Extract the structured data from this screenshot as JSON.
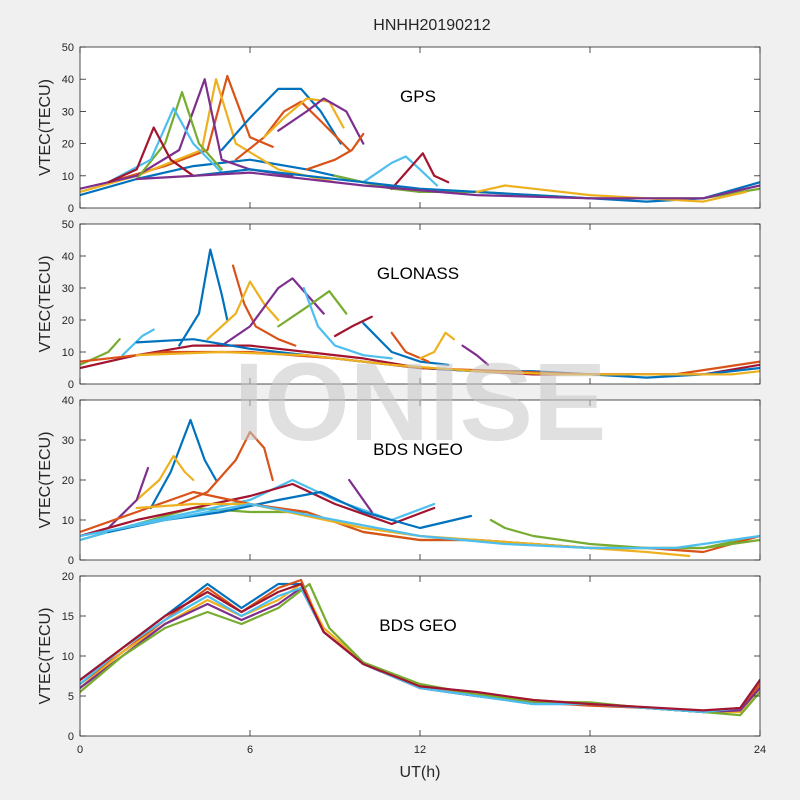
{
  "figure": {
    "title": "HNHH20190212",
    "xlabel": "UT(h)",
    "watermark": "IONISE",
    "xlim": [
      0,
      24
    ],
    "xticks": [
      0,
      6,
      12,
      18,
      24
    ],
    "colors": [
      "#0072BD",
      "#D95319",
      "#EDB120",
      "#7E2F8E",
      "#77AC30",
      "#4DBEEE",
      "#A2142F"
    ]
  },
  "chart_data": [
    {
      "type": "line",
      "label": "GPS",
      "ylabel": "VTEC(TECU)",
      "ylim": [
        0,
        50
      ],
      "yticks": [
        0,
        10,
        20,
        30,
        40,
        50
      ],
      "xlim": [
        0,
        24
      ],
      "series": [
        {
          "x": [
            0,
            2,
            4,
            6,
            8,
            10,
            12
          ],
          "y": [
            4,
            9,
            13,
            15,
            12,
            8,
            5
          ]
        },
        {
          "x": [
            1,
            3,
            4.5,
            5.2,
            6,
            6.8
          ],
          "y": [
            8,
            13,
            18,
            41,
            22,
            19
          ]
        },
        {
          "x": [
            0,
            2,
            4.3,
            4.8,
            5.5,
            7,
            9
          ],
          "y": [
            5,
            10,
            18,
            40,
            20,
            12,
            8
          ]
        },
        {
          "x": [
            0,
            2,
            3.5,
            4.4,
            5,
            6,
            7.5
          ],
          "y": [
            6,
            10,
            18,
            40,
            15,
            12,
            10
          ]
        },
        {
          "x": [
            2,
            3,
            3.6,
            4.2,
            5
          ],
          "y": [
            9,
            20,
            36,
            20,
            12
          ]
        },
        {
          "x": [
            1,
            2.5,
            3.3,
            4,
            5
          ],
          "y": [
            8,
            15,
            31,
            20,
            11
          ]
        },
        {
          "x": [
            1,
            2,
            2.6,
            3.2,
            4
          ],
          "y": [
            8,
            12,
            25,
            15,
            10
          ]
        },
        {
          "x": [
            5,
            6,
            7,
            7.8,
            8.5,
            9.2
          ],
          "y": [
            18,
            28,
            37,
            37,
            30,
            20
          ]
        },
        {
          "x": [
            5.5,
            6.5,
            7.2,
            7.8,
            8.5,
            9.5
          ],
          "y": [
            15,
            22,
            30,
            33,
            27,
            18
          ]
        },
        {
          "x": [
            6.5,
            7.2,
            8,
            8.8,
            9.3
          ],
          "y": [
            22,
            28,
            34,
            33,
            25
          ]
        },
        {
          "x": [
            7,
            8,
            8.6,
            9.4,
            10
          ],
          "y": [
            24,
            30,
            34,
            30,
            20
          ]
        },
        {
          "x": [
            9,
            10,
            11,
            12,
            14,
            16,
            18,
            20,
            22,
            24
          ],
          "y": [
            10,
            8,
            6,
            5,
            5,
            4,
            3,
            3,
            3,
            6
          ]
        },
        {
          "x": [
            10,
            11,
            11.5,
            12,
            12.6
          ],
          "y": [
            8,
            14,
            16,
            12,
            7
          ]
        },
        {
          "x": [
            11,
            11.6,
            12.1,
            12.5,
            13
          ],
          "y": [
            6,
            12,
            17,
            10,
            8
          ]
        },
        {
          "x": [
            4,
            6,
            8,
            10,
            12,
            14,
            16,
            18,
            20,
            22,
            24
          ],
          "y": [
            10,
            12,
            10,
            8,
            6,
            5,
            4,
            3,
            2,
            3,
            8
          ]
        },
        {
          "x": [
            8,
            9,
            9.6,
            10
          ],
          "y": [
            12,
            15,
            18,
            23
          ]
        },
        {
          "x": [
            14,
            15,
            16,
            18,
            20,
            22,
            23.5
          ],
          "y": [
            5,
            7,
            6,
            4,
            3,
            2,
            5
          ]
        },
        {
          "x": [
            2,
            6,
            10,
            14,
            18,
            22,
            24
          ],
          "y": [
            9,
            11,
            7,
            4,
            3,
            3,
            7
          ]
        }
      ]
    },
    {
      "type": "line",
      "label": "GLONASS",
      "ylabel": "VTEC(TECU)",
      "ylim": [
        0,
        50
      ],
      "yticks": [
        0,
        10,
        20,
        30,
        40,
        50
      ],
      "xlim": [
        0,
        24
      ],
      "series": [
        {
          "x": [
            3.5,
            4.2,
            4.6,
            5,
            5.2
          ],
          "y": [
            12,
            22,
            42,
            28,
            20
          ]
        },
        {
          "x": [
            5.4,
            5.8,
            6.2,
            7,
            7.6
          ],
          "y": [
            37,
            25,
            18,
            14,
            12
          ]
        },
        {
          "x": [
            4.5,
            5.5,
            6,
            6.5,
            7
          ],
          "y": [
            14,
            22,
            32,
            25,
            20
          ]
        },
        {
          "x": [
            5,
            6,
            7,
            7.5,
            8,
            8.6
          ],
          "y": [
            12,
            18,
            30,
            33,
            28,
            22
          ]
        },
        {
          "x": [
            7,
            8,
            8.8,
            9.4
          ],
          "y": [
            18,
            24,
            29,
            22
          ]
        },
        {
          "x": [
            7.9,
            8.4,
            9,
            10,
            11
          ],
          "y": [
            30,
            18,
            12,
            9,
            8
          ]
        },
        {
          "x": [
            9,
            9.6,
            10.3
          ],
          "y": [
            15,
            18,
            21
          ]
        },
        {
          "x": [
            10,
            11,
            12,
            13
          ],
          "y": [
            19,
            10,
            7,
            6
          ]
        },
        {
          "x": [
            11,
            11.5,
            12.3
          ],
          "y": [
            16,
            10,
            7
          ]
        },
        {
          "x": [
            12,
            12.5,
            12.9,
            13.2
          ],
          "y": [
            8,
            10,
            16,
            14
          ]
        },
        {
          "x": [
            13.5,
            14,
            14.4
          ],
          "y": [
            12,
            9,
            6
          ]
        },
        {
          "x": [
            0,
            1,
            1.4
          ],
          "y": [
            6,
            10,
            14
          ]
        },
        {
          "x": [
            1.5,
            2.2,
            2.6
          ],
          "y": [
            9,
            15,
            17
          ]
        },
        {
          "x": [
            0,
            2,
            4,
            6,
            8,
            10,
            12,
            14,
            16,
            18,
            20,
            22,
            24
          ],
          "y": [
            5,
            9,
            12,
            12,
            10,
            8,
            5,
            4,
            3,
            3,
            3,
            3,
            6
          ]
        },
        {
          "x": [
            2,
            4,
            6,
            8,
            10,
            12,
            14,
            16,
            18,
            20,
            22,
            24
          ],
          "y": [
            13,
            14,
            11,
            9,
            7,
            5,
            4,
            4,
            3,
            2,
            3,
            5
          ]
        },
        {
          "x": [
            0,
            3,
            6,
            9,
            12,
            15,
            18,
            21,
            24
          ],
          "y": [
            7,
            10,
            10,
            8,
            5,
            4,
            3,
            3,
            7
          ]
        },
        {
          "x": [
            2,
            5,
            8,
            11,
            14,
            17,
            20,
            23,
            24
          ],
          "y": [
            9,
            10,
            9,
            6,
            4,
            3,
            3,
            3,
            4
          ]
        }
      ]
    },
    {
      "type": "line",
      "label": "BDS NGEO",
      "ylabel": "VTEC(TECU)",
      "ylim": [
        0,
        40
      ],
      "yticks": [
        0,
        10,
        20,
        30,
        40
      ],
      "xlim": [
        0,
        24
      ],
      "series": [
        {
          "x": [
            2.5,
            3.2,
            3.9,
            4.4,
            4.8
          ],
          "y": [
            13,
            22,
            35,
            25,
            20
          ]
        },
        {
          "x": [
            3.5,
            4.5,
            5.5,
            6,
            6.5,
            6.8
          ],
          "y": [
            14,
            17,
            25,
            32,
            28,
            20
          ]
        },
        {
          "x": [
            2,
            2.8,
            3.3,
            3.7,
            4
          ],
          "y": [
            15,
            20,
            26,
            22,
            20
          ]
        },
        {
          "x": [
            0,
            1,
            2,
            2.4
          ],
          "y": [
            6,
            8,
            15,
            23
          ]
        },
        {
          "x": [
            0,
            2,
            4,
            6,
            8,
            10,
            12,
            14,
            16,
            18,
            20,
            22,
            24
          ],
          "y": [
            5,
            9,
            13,
            12,
            12,
            7,
            5,
            5,
            4,
            3,
            3,
            3,
            6
          ]
        },
        {
          "x": [
            0,
            2,
            4,
            6,
            7.5,
            9,
            11,
            12.5
          ],
          "y": [
            5,
            9,
            12,
            15,
            20,
            15,
            10,
            14
          ]
        },
        {
          "x": [
            0,
            2,
            4,
            6,
            7.5,
            9,
            11,
            12.5
          ],
          "y": [
            6,
            10,
            13,
            16,
            19,
            14,
            9,
            13
          ]
        },
        {
          "x": [
            1,
            3,
            5,
            7,
            8.5,
            10,
            12,
            13.8
          ],
          "y": [
            7,
            10,
            12,
            15,
            17,
            12,
            8,
            11
          ]
        },
        {
          "x": [
            0,
            2,
            4,
            6,
            8,
            10,
            12,
            14,
            16,
            18,
            20,
            22,
            24
          ],
          "y": [
            7,
            12,
            17,
            14,
            12,
            7,
            5,
            5,
            4,
            3,
            3,
            2,
            6
          ]
        },
        {
          "x": [
            2,
            4,
            6,
            8,
            10,
            12,
            14,
            16,
            18,
            20,
            21.5
          ],
          "y": [
            13,
            14,
            14,
            11,
            8,
            6,
            5,
            4,
            3,
            2,
            1
          ]
        },
        {
          "x": [
            9.5,
            9.9,
            10.3
          ],
          "y": [
            20,
            16,
            12
          ]
        },
        {
          "x": [
            14.5,
            15,
            16,
            18,
            20,
            22,
            24
          ],
          "y": [
            10,
            8,
            6,
            4,
            3,
            3,
            5
          ]
        },
        {
          "x": [
            0,
            3,
            6,
            9,
            12,
            15,
            18,
            21,
            24
          ],
          "y": [
            6,
            10,
            14,
            10,
            6,
            4,
            3,
            3,
            6
          ]
        }
      ]
    },
    {
      "type": "line",
      "label": "BDS GEO",
      "ylabel": "VTEC(TECU)",
      "ylim": [
        0,
        20
      ],
      "yticks": [
        0,
        5,
        10,
        15,
        20
      ],
      "xlim": [
        0,
        24
      ],
      "series": [
        {
          "x": [
            0,
            1.5,
            3,
            4.5,
            5.7,
            7,
            7.8,
            8.6,
            10,
            12,
            14,
            16,
            18,
            20,
            22,
            23.3,
            24
          ],
          "y": [
            7,
            11,
            15,
            19,
            16,
            19,
            19,
            13,
            9,
            6,
            5,
            4,
            4,
            3.5,
            3,
            3.5,
            7
          ]
        },
        {
          "x": [
            0,
            1.5,
            3,
            4.5,
            5.7,
            7,
            7.8,
            8.6,
            10,
            12,
            14,
            16,
            18,
            20,
            22,
            23.3,
            24
          ],
          "y": [
            6.5,
            10.5,
            14.5,
            18.5,
            15.5,
            18.5,
            19.5,
            13,
            9,
            6,
            5.2,
            4.2,
            3.8,
            3.5,
            3,
            3.2,
            6.5
          ]
        },
        {
          "x": [
            0,
            1.5,
            3,
            4.5,
            5.7,
            7,
            7.8,
            8.6,
            10,
            12,
            14,
            16,
            18,
            20,
            22,
            23.3,
            24
          ],
          "y": [
            6,
            10.5,
            14,
            17,
            15,
            17,
            19,
            13.5,
            9.2,
            6.2,
            5.3,
            4.5,
            4,
            3.6,
            3,
            3,
            6
          ]
        },
        {
          "x": [
            0,
            1.5,
            3,
            4.5,
            5.7,
            7,
            7.8,
            8.6,
            10,
            12,
            14,
            16,
            18,
            20,
            22,
            23.3,
            24
          ],
          "y": [
            6,
            10,
            14,
            16.5,
            14.5,
            16.5,
            18.5,
            13,
            9,
            6,
            5,
            4.3,
            4,
            3.5,
            3,
            3.2,
            6
          ]
        },
        {
          "x": [
            0,
            1.5,
            3,
            4.5,
            5.7,
            7,
            8.1,
            8.8,
            10,
            12,
            14,
            16,
            18,
            20,
            22,
            23.3,
            24
          ],
          "y": [
            5.5,
            10,
            13.5,
            15.5,
            14,
            16,
            19,
            13.5,
            9.2,
            6.5,
            5.2,
            4.3,
            4.2,
            3.5,
            3,
            2.6,
            5.5
          ]
        },
        {
          "x": [
            0,
            1.5,
            3,
            4.5,
            5.7,
            7,
            7.8,
            8.6,
            10,
            12,
            14,
            16,
            18,
            20,
            22,
            23.3,
            24
          ],
          "y": [
            6.5,
            11,
            14.5,
            17.5,
            15,
            17.5,
            18.5,
            13,
            9,
            6,
            5,
            4,
            4,
            3.5,
            3,
            3.5,
            7
          ]
        },
        {
          "x": [
            0,
            1.5,
            3,
            4.5,
            5.7,
            7,
            7.8,
            8.6,
            10,
            12,
            14,
            16,
            18,
            20,
            22,
            23.3,
            24
          ],
          "y": [
            7,
            11,
            15,
            18,
            15.5,
            18,
            19,
            13,
            9,
            6.2,
            5.5,
            4.5,
            4,
            3.6,
            3.2,
            3.5,
            7
          ]
        }
      ]
    }
  ]
}
